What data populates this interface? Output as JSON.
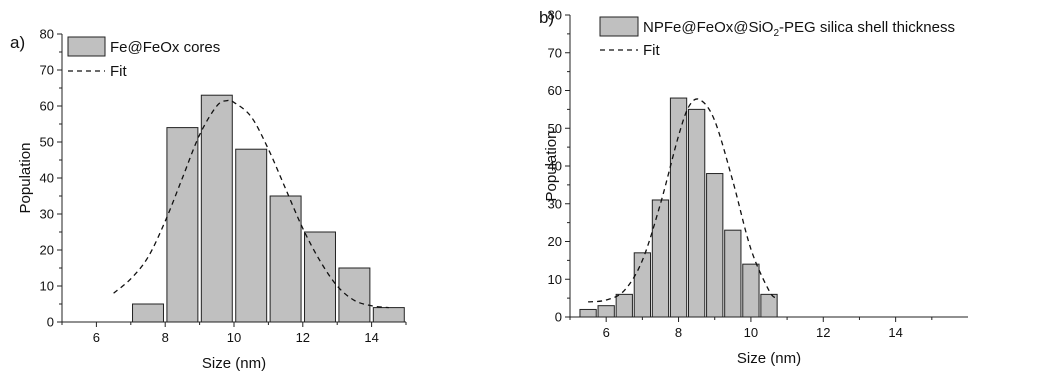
{
  "chart_data": [
    {
      "type": "bar",
      "panel_label": "a)",
      "xlabel": "Size (nm)",
      "ylabel": "Population",
      "xlim": [
        5,
        15
      ],
      "ylim": [
        0,
        80
      ],
      "xticks": [
        "6",
        "8",
        "10",
        "12",
        "14"
      ],
      "yticks": [
        "0",
        "10",
        "20",
        "30",
        "40",
        "50",
        "60",
        "70",
        "80"
      ],
      "bar_width": 0.9,
      "bar_color": "#c0c0c0",
      "legend_position": "top-left",
      "series": [
        {
          "name": "Fe@FeOx cores",
          "kind": "bar",
          "x": [
            7.5,
            8.5,
            9.5,
            10.5,
            11.5,
            12.5,
            13.5,
            14.5
          ],
          "values": [
            5,
            54,
            63,
            48,
            35,
            25,
            15,
            4
          ]
        },
        {
          "name": "Fit",
          "kind": "line",
          "style": "dashed",
          "x": [
            6.5,
            7.0,
            7.5,
            8.0,
            8.5,
            9.0,
            9.5,
            9.8,
            10.0,
            10.5,
            11.0,
            11.5,
            12.0,
            12.5,
            13.0,
            13.5,
            14.0,
            14.5
          ],
          "values": [
            8,
            12,
            18,
            28,
            40,
            52,
            60,
            61.5,
            61,
            57,
            48,
            37,
            26,
            17,
            10,
            6,
            4.5,
            4
          ]
        }
      ]
    },
    {
      "type": "bar",
      "panel_label": "b)",
      "xlabel": "Size (nm)",
      "ylabel": "Population",
      "xlim": [
        5,
        16
      ],
      "ylim": [
        0,
        80
      ],
      "xticks": [
        "6",
        "8",
        "10",
        "12",
        "14"
      ],
      "yticks": [
        "0",
        "10",
        "20",
        "30",
        "40",
        "50",
        "60",
        "70",
        "80"
      ],
      "bar_width": 0.45,
      "bar_color": "#c0c0c0",
      "legend_position": "top-left",
      "series": [
        {
          "name": "NPFe@FeOx@SiO2-PEG silica shell thickness",
          "name_parts": [
            "NPFe@FeOx@SiO",
            "2",
            "-PEG silica shell thickness"
          ],
          "kind": "bar",
          "x": [
            5.5,
            6.0,
            6.5,
            7.0,
            7.5,
            8.0,
            8.5,
            9.0,
            9.5,
            10.0,
            10.5,
            11.0
          ],
          "values": [
            2,
            3,
            6,
            17,
            31,
            58,
            55,
            38,
            23,
            14,
            6,
            0
          ]
        },
        {
          "name": "Fit",
          "kind": "line",
          "style": "dashed",
          "x": [
            5.5,
            6.0,
            6.5,
            7.0,
            7.5,
            8.0,
            8.3,
            8.6,
            9.0,
            9.5,
            10.0,
            10.5,
            10.7
          ],
          "values": [
            4,
            4.5,
            7,
            15,
            30,
            48,
            56,
            57.5,
            52,
            36,
            18,
            7,
            5
          ]
        }
      ]
    }
  ]
}
